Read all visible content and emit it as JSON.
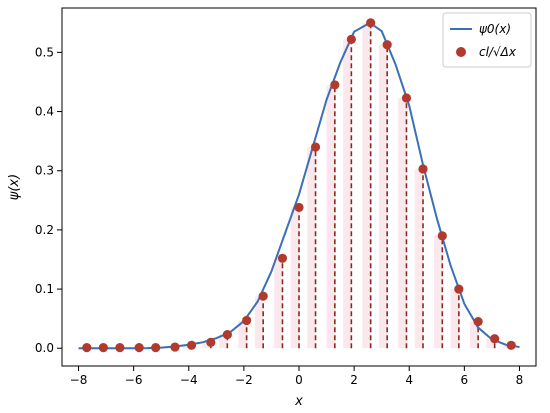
{
  "colors": {
    "curve": "#3b6fb6",
    "points": "#b03a2e",
    "stems": "#8b2a1c",
    "fill": "#f7d6df"
  },
  "chart_data": {
    "type": "scatter",
    "title": "",
    "xlabel": "x",
    "ylabel": "ψ(x)",
    "xlim": [
      -8.6,
      8.6
    ],
    "ylim": [
      -0.03,
      0.575
    ],
    "xticks": [
      -8,
      -6,
      -4,
      -2,
      0,
      2,
      4,
      6,
      8
    ],
    "yticks": [
      0.0,
      0.1,
      0.2,
      0.3,
      0.4,
      0.5
    ],
    "grid": false,
    "legend_position": "top-right",
    "series": [
      {
        "name": "ψ0(x)",
        "kind": "line",
        "x": [
          -8.0,
          -7.5,
          -7.0,
          -6.5,
          -6.0,
          -5.5,
          -5.0,
          -4.5,
          -4.0,
          -3.5,
          -3.0,
          -2.5,
          -2.0,
          -1.5,
          -1.0,
          -0.5,
          0.0,
          0.5,
          1.0,
          1.5,
          2.0,
          2.5,
          2.6,
          3.0,
          3.5,
          4.0,
          4.5,
          5.0,
          5.5,
          6.0,
          6.5,
          7.0,
          7.5,
          8.0
        ],
        "y": [
          0.0,
          0.0,
          0.0,
          0.0,
          0.0,
          0.0002,
          0.001,
          0.003,
          0.006,
          0.01,
          0.017,
          0.027,
          0.046,
          0.079,
          0.13,
          0.195,
          0.26,
          0.34,
          0.42,
          0.483,
          0.535,
          0.548,
          0.549,
          0.536,
          0.48,
          0.41,
          0.31,
          0.22,
          0.14,
          0.075,
          0.035,
          0.015,
          0.006,
          0.002
        ]
      },
      {
        "name": "cl/√Δx",
        "kind": "scatter",
        "x": [
          -7.7,
          -7.1,
          -6.5,
          -5.8,
          -5.2,
          -4.5,
          -3.9,
          -3.2,
          -2.6,
          -1.9,
          -1.3,
          -0.6,
          0.0,
          0.6,
          1.3,
          1.9,
          2.6,
          3.2,
          3.9,
          4.5,
          5.2,
          5.8,
          6.5,
          7.1,
          7.7
        ],
        "y": [
          0.001,
          0.001,
          0.001,
          0.001,
          0.001,
          0.002,
          0.005,
          0.01,
          0.023,
          0.047,
          0.088,
          0.152,
          0.238,
          0.34,
          0.445,
          0.522,
          0.55,
          0.513,
          0.423,
          0.303,
          0.19,
          0.1,
          0.045,
          0.016,
          0.005
        ]
      }
    ]
  }
}
